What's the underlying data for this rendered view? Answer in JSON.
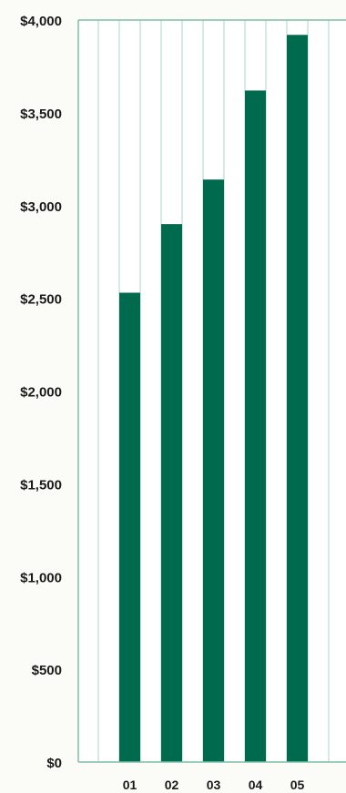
{
  "chart_data": {
    "type": "bar",
    "categories": [
      "01",
      "02",
      "03",
      "04",
      "05"
    ],
    "values": [
      2530,
      2900,
      3140,
      3620,
      3920
    ],
    "title": "",
    "xlabel": "",
    "ylabel": "",
    "ylim": [
      0,
      4000
    ],
    "yticks": [
      {
        "value": 0,
        "label": "$0"
      },
      {
        "value": 500,
        "label": "$500"
      },
      {
        "value": 1000,
        "label": "$1,000"
      },
      {
        "value": 1500,
        "label": "$1,500"
      },
      {
        "value": 2000,
        "label": "$2,000"
      },
      {
        "value": 2500,
        "label": "$2,500"
      },
      {
        "value": 3000,
        "label": "$3,000"
      },
      {
        "value": 3500,
        "label": "$3,500"
      },
      {
        "value": 4000,
        "label": "$4,000"
      }
    ],
    "grid": "vertical",
    "legend": "none",
    "colors": {
      "bar": "#006a4e",
      "grid": "#a9d6c6",
      "axis": "#7fbfa6",
      "background": "#ffffff"
    }
  }
}
